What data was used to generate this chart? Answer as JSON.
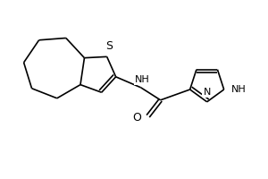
{
  "background_color": "#ffffff",
  "line_color": "#000000",
  "line_width": 1.2,
  "font_size": 8,
  "figsize": [
    3.0,
    2.0
  ],
  "dpi": 100,
  "xlim": [
    0,
    300
  ],
  "ylim": [
    0,
    200
  ]
}
